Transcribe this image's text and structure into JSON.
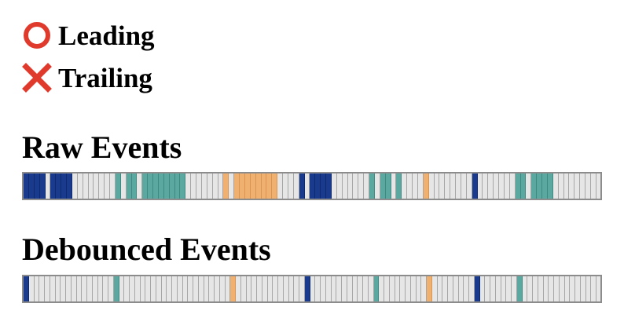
{
  "options": {
    "leading": {
      "label": "Leading",
      "icon": "circle-icon",
      "color": "#e03a2c"
    },
    "trailing": {
      "label": "Trailing",
      "icon": "cross-icon",
      "color": "#e03a2c"
    }
  },
  "raw": {
    "title": "Raw Events",
    "cells": [
      "navy",
      "navy",
      "navy",
      "navy",
      "empty",
      "navy",
      "navy",
      "navy",
      "navy",
      "empty",
      "empty",
      "empty",
      "empty",
      "empty",
      "empty",
      "empty",
      "empty",
      "teal",
      "empty",
      "teal",
      "teal",
      "empty",
      "teal",
      "teal",
      "teal",
      "teal",
      "teal",
      "teal",
      "teal",
      "teal",
      "empty",
      "empty",
      "empty",
      "empty",
      "empty",
      "empty",
      "empty",
      "orange",
      "empty",
      "orange",
      "orange",
      "orange",
      "orange",
      "orange",
      "orange",
      "orange",
      "orange",
      "empty",
      "empty",
      "empty",
      "empty",
      "navy",
      "empty",
      "navy",
      "navy",
      "navy",
      "navy",
      "empty",
      "empty",
      "empty",
      "empty",
      "empty",
      "empty",
      "empty",
      "teal",
      "empty",
      "teal",
      "teal",
      "empty",
      "teal",
      "empty",
      "empty",
      "empty",
      "empty",
      "orange",
      "empty",
      "empty",
      "empty",
      "empty",
      "empty",
      "empty",
      "empty",
      "empty",
      "navy",
      "empty",
      "empty",
      "empty",
      "empty",
      "empty",
      "empty",
      "empty",
      "teal",
      "teal",
      "empty",
      "teal",
      "teal",
      "teal",
      "teal",
      "empty",
      "empty",
      "empty",
      "empty",
      "empty",
      "empty",
      "empty",
      "empty",
      "empty"
    ]
  },
  "debounced": {
    "title": "Debounced Events",
    "cells": [
      "navy",
      "empty",
      "empty",
      "empty",
      "empty",
      "empty",
      "empty",
      "empty",
      "empty",
      "empty",
      "empty",
      "empty",
      "empty",
      "empty",
      "empty",
      "empty",
      "empty",
      "teal",
      "empty",
      "empty",
      "empty",
      "empty",
      "empty",
      "empty",
      "empty",
      "empty",
      "empty",
      "empty",
      "empty",
      "empty",
      "empty",
      "empty",
      "empty",
      "empty",
      "empty",
      "empty",
      "empty",
      "empty",
      "empty",
      "orange",
      "empty",
      "empty",
      "empty",
      "empty",
      "empty",
      "empty",
      "empty",
      "empty",
      "empty",
      "empty",
      "empty",
      "empty",
      "empty",
      "navy",
      "empty",
      "empty",
      "empty",
      "empty",
      "empty",
      "empty",
      "empty",
      "empty",
      "empty",
      "empty",
      "empty",
      "empty",
      "teal",
      "empty",
      "empty",
      "empty",
      "empty",
      "empty",
      "empty",
      "empty",
      "empty",
      "empty",
      "orange",
      "empty",
      "empty",
      "empty",
      "empty",
      "empty",
      "empty",
      "empty",
      "empty",
      "navy",
      "empty",
      "empty",
      "empty",
      "empty",
      "empty",
      "empty",
      "empty",
      "teal",
      "empty",
      "empty",
      "empty",
      "empty",
      "empty",
      "empty",
      "empty",
      "empty",
      "empty",
      "empty",
      "empty",
      "empty",
      "empty",
      "empty",
      "empty"
    ]
  },
  "colors": {
    "navy": "#1a3a8e",
    "teal": "#5aa8a0",
    "orange": "#f0b070",
    "empty": "#e6e6e6",
    "icon_red": "#e03a2c"
  }
}
